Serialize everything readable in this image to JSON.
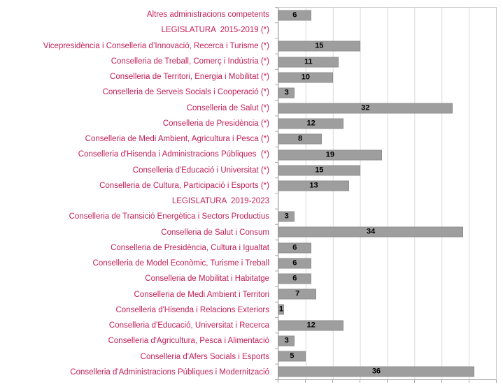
{
  "chart_data": {
    "type": "bar",
    "orientation": "horizontal",
    "title": "",
    "xlabel": "",
    "ylabel": "",
    "xlim": [
      0,
      40
    ],
    "gridline_step": 5,
    "grid": true,
    "legend": false,
    "categories": [
      "Altres administracions competents",
      "LEGISLATURA  2015-2019 (*)",
      "Vicepresidència i Conselleria d’Innovació, Recerca i Turisme (*)",
      "Conselleria de Treball, Comerç i Indústria (*)",
      "Conselleria de Territori, Energia i Mobilitat (*)",
      "Conselleria de Serveis Socials i Cooperació (*)",
      "Conselleria de Salut (*)",
      "Conselleria de Presidència (*)",
      "Conselleria de Medi Ambient, Agricultura i Pesca (*)",
      "Conselleria d'Hisenda i Administracions Públiques  (*)",
      "Conselleria d'Educació i Universitat (*)",
      "Conselleria de Cultura, Participació i Esports (*)",
      "LEGISLATURA  2019-2023",
      "Conselleria de Transició Energètica i Sectors Productius",
      "Conselleria de Salut i Consum",
      "Conselleria de Presidència, Cultura i Igualtat",
      "Conselleria de Model Econòmic, Turisme i Treball",
      "Conselleria de Mobilitat i Habitatge",
      "Conselleria de Medi Ambient i Territori",
      "Conselleria d'Hisenda i Relacions Exteriors",
      "Conselleria d'Educació, Universitat i Recerca",
      "Conselleria d'Agricultura, Pesca i Alimentació",
      "Conselleria d'Afers Socials i Esports",
      "Conselleria d'Administracions Públiques i Modernització"
    ],
    "values": [
      6,
      null,
      15,
      11,
      10,
      3,
      32,
      12,
      8,
      19,
      15,
      13,
      null,
      3,
      34,
      6,
      6,
      6,
      7,
      1,
      12,
      3,
      5,
      36
    ],
    "colors": {
      "bar": "#9E9E9E",
      "bar_border": "#8F8F8F",
      "category_label": "#C21E56",
      "value_label": "#000000",
      "gridline": "#D9D9D9",
      "axis": "#ABABAB"
    }
  }
}
